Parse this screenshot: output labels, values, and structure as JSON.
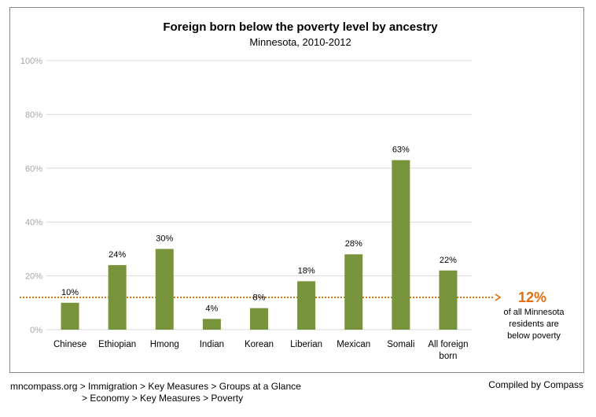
{
  "chart_data": {
    "type": "bar",
    "title": "Foreign born below the poverty level by ancestry",
    "subtitle": "Minnesota, 2010-2012",
    "categories": [
      [
        "Chinese"
      ],
      [
        "Ethiopian"
      ],
      [
        "Hmong"
      ],
      [
        "Indian"
      ],
      [
        "Korean"
      ],
      [
        "Liberian"
      ],
      [
        "Mexican"
      ],
      [
        "Somali"
      ],
      [
        "All foreign",
        "born"
      ]
    ],
    "values": [
      10,
      24,
      30,
      4,
      8,
      18,
      28,
      63,
      22
    ],
    "data_labels": [
      "10%",
      "24%",
      "30%",
      "4%",
      "8%",
      "18%",
      "28%",
      "63%",
      "22%"
    ],
    "ylim": [
      0,
      100
    ],
    "yticks": [
      0,
      20,
      40,
      60,
      80,
      100
    ],
    "ytick_labels": [
      "0%",
      "20%",
      "40%",
      "60%",
      "80%",
      "100%"
    ],
    "grid": true,
    "bar_color": "#77933c",
    "reference_line": {
      "value": 12,
      "label": "12%",
      "note": [
        "of all Minnesota",
        "residents are",
        "below poverty"
      ],
      "color": "#e46c0a"
    }
  },
  "footer": {
    "source_line1": "mncompass.org > Immigration > Key Measures > Groups at a Glance",
    "source_line2": "> Economy > Key Measures > Poverty",
    "credit": "Compiled by Compass"
  }
}
